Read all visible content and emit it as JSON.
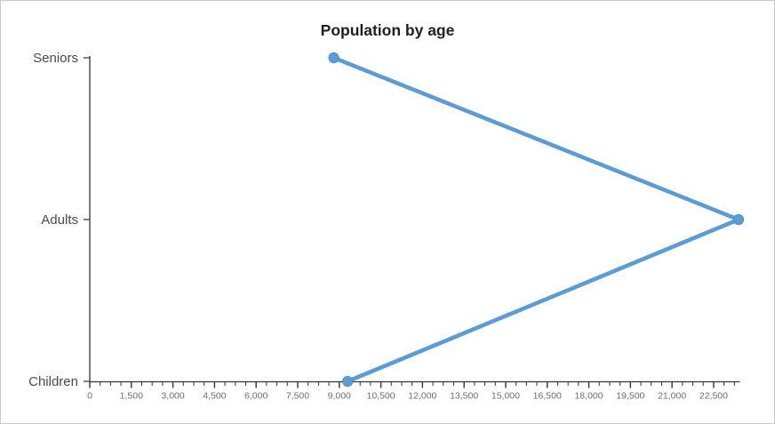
{
  "chart": {
    "title": "Population by age",
    "colors": {
      "series_line": "#5b9cd6",
      "marker_fill": "#5b9cd6",
      "marker_stroke": "#4e90cc",
      "axis_line": "#333333",
      "tick_label": "#6e6e6e",
      "category_label": "#4a4a4a",
      "title": "#1f1f1f",
      "frame_border": "#c9c9c9",
      "background": "#ffffff"
    }
  },
  "chart_data": {
    "type": "line",
    "orientation": "horizontal-categorical",
    "title": "Population by age",
    "xlabel": "",
    "ylabel": "",
    "categories": [
      "Seniors",
      "Adults",
      "Children"
    ],
    "values": [
      8800,
      23400,
      9300
    ],
    "xlim": [
      0,
      23400
    ],
    "x_major_tick_interval": 1500,
    "x_minor_tick_interval": 375,
    "x_tick_labels": [
      "0",
      "1,500",
      "3,000",
      "4,500",
      "6,000",
      "7,500",
      "9,000",
      "10,500",
      "12,000",
      "13,500",
      "15,000",
      "16,500",
      "18,000",
      "19,500",
      "21,000",
      "22,500"
    ],
    "grid": false,
    "legend": "none",
    "markers": true
  }
}
